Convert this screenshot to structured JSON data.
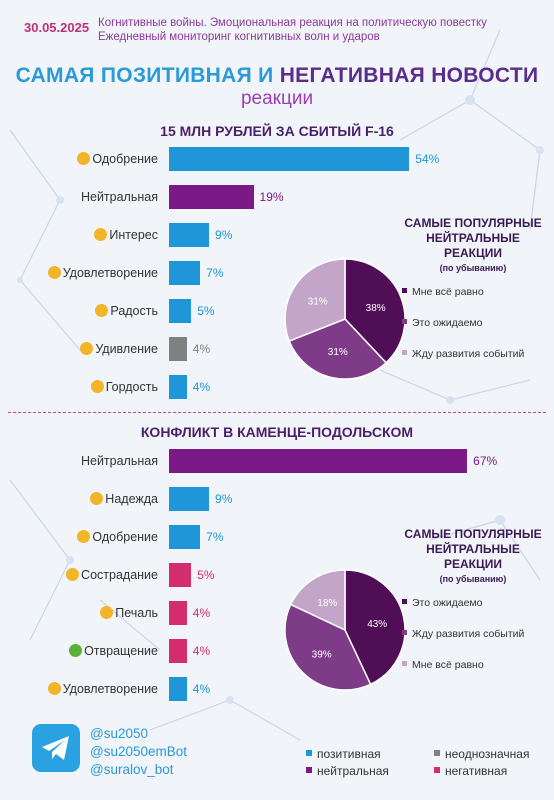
{
  "header": {
    "date": "30.05.2025",
    "subtitle_line1": "Когнитивные войны. Эмоциональная реакция на политическую повестку",
    "subtitle_line2": "Ежедневный мониторинг когнитивных волн и ударов",
    "title_part1": "САМАЯ ПОЗИТИВНАЯ И",
    "title_part2": "НЕГАТИВНАЯ НОВОСТИ",
    "title_sub": "реакции"
  },
  "colors": {
    "positive": "#1e96d8",
    "neutral": "#7b1a87",
    "ambiguous": "#808080",
    "negative": "#d42d6e"
  },
  "chart_data": [
    {
      "type": "bar",
      "title": "15 МЛН РУБЛЕЙ ЗА СБИТЫЙ F-16",
      "categories": [
        "Одобрение",
        "Нейтральная",
        "Интерес",
        "Удовлетворение",
        "Радость",
        "Удивление",
        "Гордость"
      ],
      "values": [
        54,
        19,
        9,
        7,
        5,
        4,
        4
      ],
      "labels": [
        "54%",
        "19%",
        "9%",
        "7%",
        "5%",
        "4%",
        "4%"
      ],
      "groups": [
        "positive",
        "neutral",
        "positive",
        "positive",
        "positive",
        "ambiguous",
        "positive"
      ],
      "icons": [
        "approval-icon",
        "",
        "interest-icon",
        "satisfaction-icon",
        "joy-icon",
        "surprise-icon",
        "pride-icon"
      ]
    },
    {
      "type": "pie",
      "title_line1": "САМЫЕ ПОПУЛЯРНЫЕ",
      "title_line2": "НЕЙТРАЛЬНЫЕ РЕАКЦИИ",
      "note": "(по убыванию)",
      "categories": [
        "Мне всё равно",
        "Это ожидаемо",
        "Жду развития событий"
      ],
      "values": [
        38,
        31,
        31
      ],
      "labels": [
        "38%",
        "31%",
        "31%"
      ],
      "colors": [
        "#4f0e55",
        "#7e3c88",
        "#c2a5c8"
      ]
    },
    {
      "type": "bar",
      "title": "КОНФЛИКТ В КАМЕНЦЕ-ПОДОЛЬСКОМ",
      "categories": [
        "Нейтральная",
        "Надежда",
        "Одобрение",
        "Сострадание",
        "Печаль",
        "Отвращение",
        "Удовлетворение"
      ],
      "values": [
        67,
        9,
        7,
        5,
        4,
        4,
        4
      ],
      "labels": [
        "67%",
        "9%",
        "7%",
        "5%",
        "4%",
        "4%",
        "4%"
      ],
      "groups": [
        "neutral",
        "positive",
        "positive",
        "negative",
        "negative",
        "negative",
        "positive"
      ],
      "icons": [
        "",
        "hope-icon",
        "approval-icon",
        "compassion-icon",
        "sadness-icon",
        "disgust-icon",
        "satisfaction-icon"
      ]
    },
    {
      "type": "pie",
      "title_line1": "САМЫЕ ПОПУЛЯРНЫЕ",
      "title_line2": "НЕЙТРАЛЬНЫЕ РЕАКЦИИ",
      "note": "(по убыванию)",
      "categories": [
        "Это ожидаемо",
        "Жду развития событий",
        "Мне всё равно"
      ],
      "values": [
        43,
        39,
        18
      ],
      "labels": [
        "43%",
        "39%",
        "18%"
      ],
      "colors": [
        "#4f0e55",
        "#7e3c88",
        "#c2a5c8"
      ]
    }
  ],
  "footer": {
    "handles": [
      "@su2050",
      "@su2050emBot",
      "@suralov_bot"
    ],
    "legend": [
      {
        "label": "позитивная",
        "color": "#1e96d8"
      },
      {
        "label": "неоднозначная",
        "color": "#808080"
      },
      {
        "label": "нейтральная",
        "color": "#7b1a87"
      },
      {
        "label": "негативная",
        "color": "#d42d6e"
      }
    ],
    "icon": "telegram-icon"
  }
}
